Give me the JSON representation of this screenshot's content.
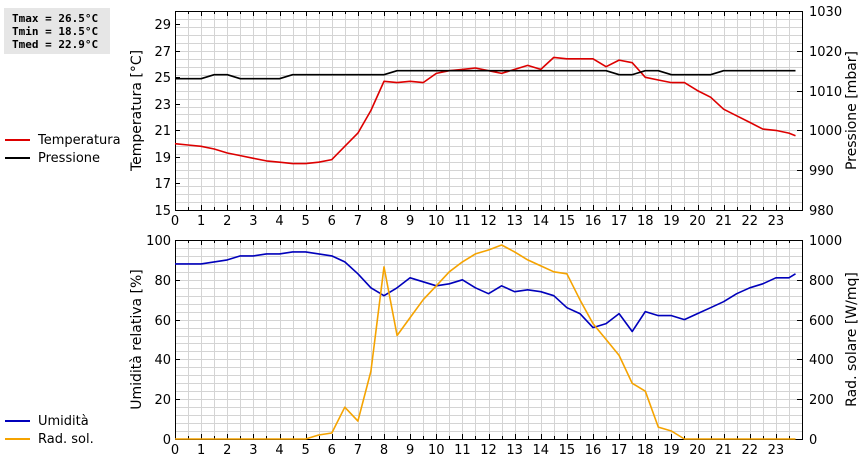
{
  "stats": {
    "tmax": "Tmax = 26.5°C",
    "tmin": "Tmin = 18.5°C",
    "tmed": "Tmed = 22.9°C"
  },
  "colors": {
    "temperature": "#dd0000",
    "pressure": "#000000",
    "humidity": "#0000bb",
    "solar": "#f5a300",
    "grid": "#d4d4d4"
  },
  "chart_data": [
    {
      "type": "line",
      "xlabel": "",
      "ylabel": "Temperatura [°C]",
      "y2label": "Pressione [mbar]",
      "xlim": [
        0,
        24
      ],
      "ylim": [
        15,
        30
      ],
      "y2lim": [
        980,
        1030
      ],
      "x_ticks": [
        0,
        1,
        2,
        3,
        4,
        5,
        6,
        7,
        8,
        9,
        10,
        11,
        12,
        13,
        14,
        15,
        16,
        17,
        18,
        19,
        20,
        21,
        22,
        23
      ],
      "y_ticks": [
        15,
        17,
        19,
        21,
        23,
        25,
        27,
        29
      ],
      "y2_ticks": [
        980,
        990,
        1000,
        1010,
        1020,
        1030
      ],
      "grid": true,
      "legend": "left",
      "series": [
        {
          "name": "Temperatura",
          "axis": "left",
          "x": [
            0,
            0.5,
            1,
            1.5,
            2,
            2.5,
            3,
            3.5,
            4,
            4.5,
            5,
            5.5,
            6,
            6.5,
            7,
            7.5,
            8,
            8.5,
            9,
            9.5,
            10,
            10.5,
            11,
            11.5,
            12,
            12.5,
            13,
            13.5,
            14,
            14.5,
            15,
            15.5,
            16,
            16.5,
            17,
            17.5,
            18,
            18.5,
            19,
            19.5,
            20,
            20.5,
            21,
            21.5,
            22,
            22.5,
            23,
            23.5,
            23.75
          ],
          "values": [
            20.0,
            19.9,
            19.8,
            19.6,
            19.3,
            19.1,
            18.9,
            18.7,
            18.6,
            18.5,
            18.5,
            18.6,
            18.8,
            19.8,
            20.8,
            22.5,
            24.7,
            24.6,
            24.7,
            24.6,
            25.3,
            25.5,
            25.6,
            25.7,
            25.5,
            25.3,
            25.6,
            25.9,
            25.6,
            26.5,
            26.4,
            26.4,
            26.4,
            25.8,
            26.3,
            26.1,
            25.0,
            24.8,
            24.6,
            24.6,
            24.0,
            23.5,
            22.6,
            22.1,
            21.6,
            21.1,
            21.0,
            20.8,
            20.6
          ]
        },
        {
          "name": "Pressione",
          "axis": "right",
          "x": [
            0,
            1,
            1.5,
            2,
            2.5,
            3,
            4,
            4.5,
            5,
            5.5,
            6,
            7,
            8,
            8.5,
            9,
            10,
            11,
            12,
            13,
            14,
            15,
            16,
            16.5,
            17,
            17.5,
            18,
            18.5,
            19,
            19.5,
            20,
            20.5,
            21,
            21.5,
            22,
            23,
            23.75
          ],
          "values": [
            1013,
            1013,
            1014,
            1014,
            1013,
            1013,
            1013,
            1014,
            1014,
            1014,
            1014,
            1014,
            1014,
            1015,
            1015,
            1015,
            1015,
            1015,
            1015,
            1015,
            1015,
            1015,
            1015,
            1014,
            1014,
            1015,
            1015,
            1014,
            1014,
            1014,
            1014,
            1015,
            1015,
            1015,
            1015,
            1015
          ]
        }
      ]
    },
    {
      "type": "line",
      "xlabel": "",
      "ylabel": "Umidità relativa [%]",
      "y2label": "Rad. solare [W/mq]",
      "xlim": [
        0,
        24
      ],
      "ylim": [
        0,
        100
      ],
      "y2lim": [
        0,
        1000
      ],
      "x_ticks": [
        0,
        1,
        2,
        3,
        4,
        5,
        6,
        7,
        8,
        9,
        10,
        11,
        12,
        13,
        14,
        15,
        16,
        17,
        18,
        19,
        20,
        21,
        22,
        23
      ],
      "y_ticks": [
        0,
        20,
        40,
        60,
        80,
        100
      ],
      "y2_ticks": [
        0,
        200,
        400,
        600,
        800,
        1000
      ],
      "grid": true,
      "legend": "left",
      "series": [
        {
          "name": "Umidità",
          "axis": "left",
          "x": [
            0,
            0.5,
            1,
            1.5,
            2,
            2.5,
            3,
            3.5,
            4,
            4.5,
            5,
            5.5,
            6,
            6.5,
            7,
            7.5,
            8,
            8.5,
            9,
            9.5,
            10,
            10.5,
            11,
            11.5,
            12,
            12.5,
            13,
            13.5,
            14,
            14.5,
            15,
            15.5,
            16,
            16.5,
            17,
            17.5,
            18,
            18.5,
            19,
            19.5,
            20,
            20.5,
            21,
            21.5,
            22,
            22.5,
            23,
            23.5,
            23.75
          ],
          "values": [
            88,
            88,
            88,
            89,
            90,
            92,
            92,
            93,
            93,
            94,
            94,
            93,
            92,
            89,
            83,
            76,
            72,
            76,
            81,
            79,
            77,
            78,
            80,
            76,
            73,
            77,
            74,
            75,
            74,
            72,
            66,
            63,
            56,
            58,
            63,
            54,
            64,
            62,
            62,
            60,
            63,
            66,
            69,
            73,
            76,
            78,
            81,
            81,
            83
          ]
        },
        {
          "name": "Rad. sol.",
          "axis": "right",
          "x": [
            0,
            1,
            2,
            3,
            4,
            5,
            5.5,
            6,
            6.5,
            7,
            7.5,
            8,
            8.5,
            9,
            9.5,
            10,
            10.5,
            11,
            11.5,
            12,
            12.5,
            13,
            13.5,
            14,
            14.5,
            15,
            15.5,
            16,
            16.5,
            17,
            17.5,
            18,
            18.5,
            19,
            19.5,
            20,
            21,
            22,
            23,
            23.75
          ],
          "values": [
            0,
            0,
            0,
            0,
            0,
            0,
            20,
            30,
            160,
            90,
            340,
            865,
            520,
            610,
            700,
            770,
            840,
            890,
            930,
            950,
            975,
            940,
            900,
            870,
            840,
            830,
            700,
            580,
            500,
            420,
            280,
            240,
            60,
            40,
            0,
            0,
            0,
            0,
            0,
            0
          ]
        }
      ]
    }
  ]
}
